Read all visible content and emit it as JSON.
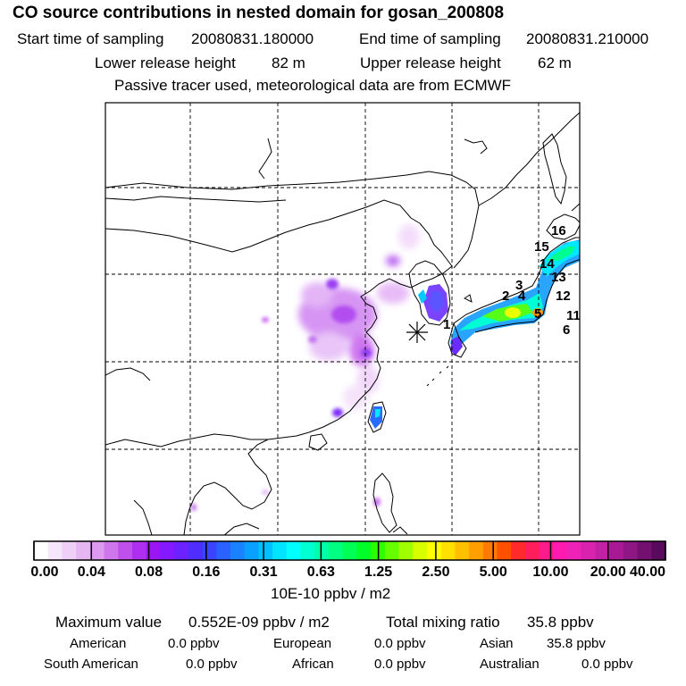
{
  "header": {
    "title": "CO  source contributions in nested domain for gosan_200808",
    "start_label": "Start time of sampling",
    "start_value": "20080831.180000",
    "end_label": "End time of sampling",
    "end_value": "20080831.210000",
    "lower_label": "Lower release height",
    "lower_value": "82 m",
    "upper_label": "Upper release height",
    "upper_value": "62 m",
    "note": "Passive tracer used, meteorological data are from ECMWF"
  },
  "colorbar": {
    "ticks": [
      "0.00",
      "0.04",
      "0.08",
      "0.16",
      "0.31",
      "0.63",
      "1.25",
      "2.50",
      "5.00",
      "10.00",
      "20.00",
      "40.00"
    ],
    "colors": [
      "#ffffff",
      "#f7e6fb",
      "#efcff7",
      "#e6b6f3",
      "#dc9af0",
      "#cf76ec",
      "#c050eb",
      "#ae2ff0",
      "#9a16f3",
      "#8418ff",
      "#6b22ff",
      "#4f2dff",
      "#3a44ff",
      "#2a62ff",
      "#1b82ff",
      "#0aa0ff",
      "#00c0ff",
      "#00e4ff",
      "#00ffff",
      "#00ffd0",
      "#00ffa8",
      "#00ff80",
      "#00ff55",
      "#00ff28",
      "#2cff00",
      "#66ff00",
      "#a0ff00",
      "#d8ff00",
      "#ffff00",
      "#ffe000",
      "#ffc000",
      "#ffa000",
      "#ff7a00",
      "#ff5000",
      "#ff2a2a",
      "#ff1d5c",
      "#ff1a8c",
      "#ff1ab0",
      "#ee22b6",
      "#d923ae",
      "#c121a2",
      "#a81a94",
      "#8f1685",
      "#741070",
      "#5a0a5c"
    ],
    "unit": "10E-10 ppbv / m2"
  },
  "summary": {
    "max_label": "Maximum value",
    "max_value": "0.552E-09 ppbv / m2",
    "total_label": "Total mixing ratio",
    "total_value": "35.8 ppbv",
    "regions": [
      {
        "name": "American",
        "value": "0.0 ppbv"
      },
      {
        "name": "European",
        "value": "0.0 ppbv"
      },
      {
        "name": "Asian",
        "value": "35.8 ppbv"
      },
      {
        "name": "South American",
        "value": "0.0 ppbv"
      },
      {
        "name": "African",
        "value": "0.0 ppbv"
      },
      {
        "name": "Australian",
        "value": "0.0 ppbv"
      }
    ]
  },
  "map": {
    "receptor_labels": [
      "1",
      "2",
      "3",
      "4",
      "5",
      "6",
      "11",
      "12",
      "13",
      "14",
      "15",
      "16"
    ],
    "receptor_marker": "asterisk-icon"
  }
}
